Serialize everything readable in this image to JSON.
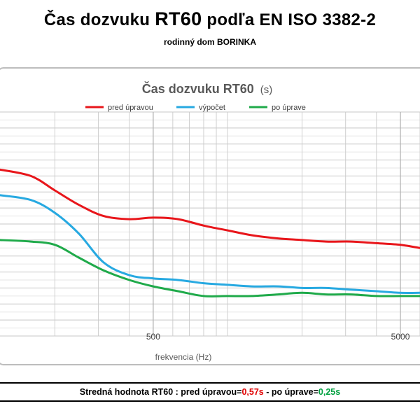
{
  "header": {
    "title_a": "Čas dozvuku",
    "title_b": "RT60",
    "title_c": "podľa EN ISO 3382-2",
    "subtitle": "rodinný dom BORINKA"
  },
  "footer": {
    "label": "Stredná hodnota RT60 :",
    "before_label": "pred úpravou=",
    "before_value": "0,57s",
    "separator": "-",
    "after_label": "po úprave=",
    "after_value": "0,25s"
  },
  "chart_data": {
    "type": "line",
    "title": "Čas dozvuku RT60",
    "title_unit": "(s)",
    "xlabel": "frekvencia (Hz)",
    "x_scale": "log",
    "x_tick_labels": [
      500,
      5000
    ],
    "xlim": [
      120,
      6000
    ],
    "y_scale": "linear",
    "ylim": [
      0,
      1.4
    ],
    "y_grid_step": 0.1,
    "grid": true,
    "legend_position": "top",
    "series": [
      {
        "name": "pred úpravou",
        "color": "#e8161b",
        "x": [
          120,
          160,
          200,
          250,
          315,
          400,
          500,
          630,
          800,
          1000,
          1250,
          1600,
          2000,
          2500,
          3150,
          4000,
          5000,
          6000
        ],
        "y": [
          1.04,
          1.0,
          0.91,
          0.82,
          0.75,
          0.73,
          0.74,
          0.73,
          0.69,
          0.66,
          0.63,
          0.61,
          0.6,
          0.59,
          0.59,
          0.58,
          0.57,
          0.55
        ]
      },
      {
        "name": "výpočet",
        "color": "#27a9e1",
        "x": [
          120,
          160,
          200,
          250,
          315,
          400,
          500,
          630,
          800,
          1000,
          1250,
          1600,
          2000,
          2500,
          3150,
          4000,
          5000,
          6000
        ],
        "y": [
          0.88,
          0.85,
          0.77,
          0.64,
          0.46,
          0.38,
          0.36,
          0.35,
          0.33,
          0.32,
          0.31,
          0.31,
          0.3,
          0.3,
          0.29,
          0.28,
          0.27,
          0.27
        ]
      },
      {
        "name": "po úprave",
        "color": "#1faa4a",
        "x": [
          120,
          160,
          200,
          250,
          315,
          400,
          500,
          630,
          800,
          1000,
          1250,
          1600,
          2000,
          2500,
          3150,
          4000,
          5000,
          6000
        ],
        "y": [
          0.6,
          0.59,
          0.57,
          0.49,
          0.41,
          0.35,
          0.31,
          0.28,
          0.25,
          0.25,
          0.25,
          0.26,
          0.27,
          0.26,
          0.26,
          0.25,
          0.25,
          0.25
        ]
      }
    ]
  }
}
